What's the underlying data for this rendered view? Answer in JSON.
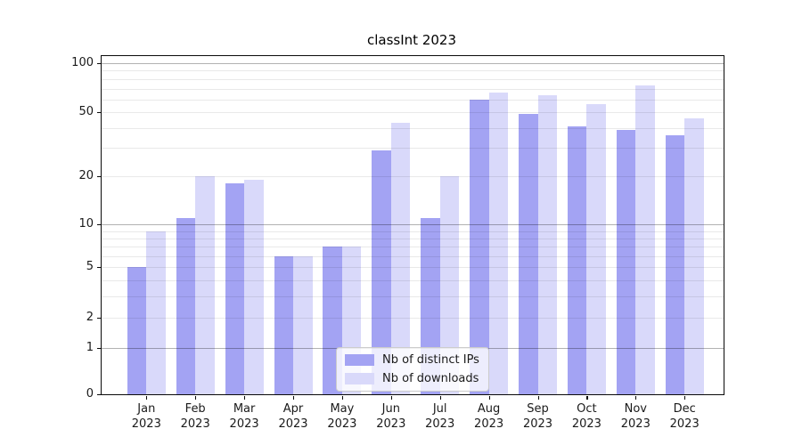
{
  "chart_data": {
    "type": "bar",
    "title": "classInt 2023",
    "year_label": "2023",
    "categories": [
      "Jan",
      "Feb",
      "Mar",
      "Apr",
      "May",
      "Jun",
      "Jul",
      "Aug",
      "Sep",
      "Oct",
      "Nov",
      "Dec"
    ],
    "series": [
      {
        "name": "Nb of distinct IPs",
        "color": "#a3a3f3",
        "values": [
          5,
          11,
          18,
          6,
          7,
          29,
          11,
          60,
          49,
          41,
          39,
          36
        ]
      },
      {
        "name": "Nb of downloads",
        "color": "#d9d9fa",
        "values": [
          9,
          20,
          19,
          6,
          7,
          43,
          20,
          66,
          64,
          56,
          73,
          46
        ]
      }
    ],
    "y_axis": {
      "scale": "asinh-like (quasi-log with linear zero region)",
      "tick_values": [
        0,
        1,
        2,
        5,
        10,
        20,
        50,
        100
      ],
      "decade_gridline_color": "#b0b0b0",
      "minor_gridline_color": "#e8e8e8"
    },
    "x_axis": {
      "label_format": "month over year, two lines"
    },
    "legend": {
      "position": "bottom-center",
      "background": "rgba(255,255,255,0.8)"
    },
    "grid": true,
    "spine_color": "#0a0a0a"
  }
}
